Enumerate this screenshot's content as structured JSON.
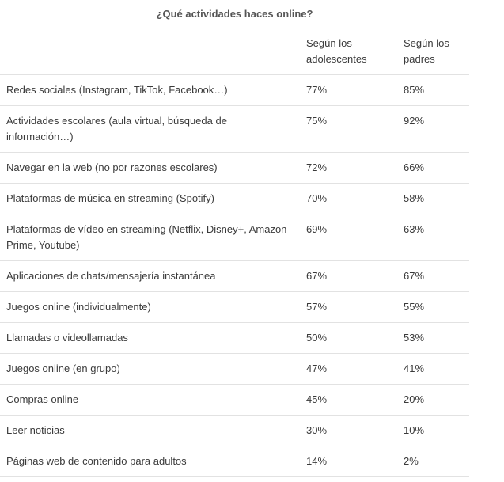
{
  "title": "¿Qué actividades haces online?",
  "table": {
    "header": [
      "",
      "Según los adolescentes",
      "Según los padres"
    ],
    "rows": [
      [
        "Redes sociales (Instagram, TikTok, Facebook…)",
        "77%",
        "85%"
      ],
      [
        "Actividades escolares (aula virtual, búsqueda de información…)",
        "75%",
        "92%"
      ],
      [
        "Navegar en la web (no por razones escolares)",
        "72%",
        "66%"
      ],
      [
        "Plataformas de música en streaming (Spotify)",
        "70%",
        "58%"
      ],
      [
        "Plataformas de vídeo en streaming (Netflix, Disney+, Amazon Prime, Youtube)",
        "69%",
        "63%"
      ],
      [
        "Aplicaciones de chats/mensajería instantánea",
        "67%",
        "67%"
      ],
      [
        "Juegos online (individualmente)",
        "57%",
        "55%"
      ],
      [
        "Llamadas o videollamadas",
        "50%",
        "53%"
      ],
      [
        "Juegos online (en grupo)",
        "47%",
        "41%"
      ],
      [
        "Compras online",
        "45%",
        "20%"
      ],
      [
        "Leer noticias",
        "30%",
        "10%"
      ],
      [
        "Páginas web de contenido para adultos",
        "14%",
        "2%"
      ]
    ]
  }
}
